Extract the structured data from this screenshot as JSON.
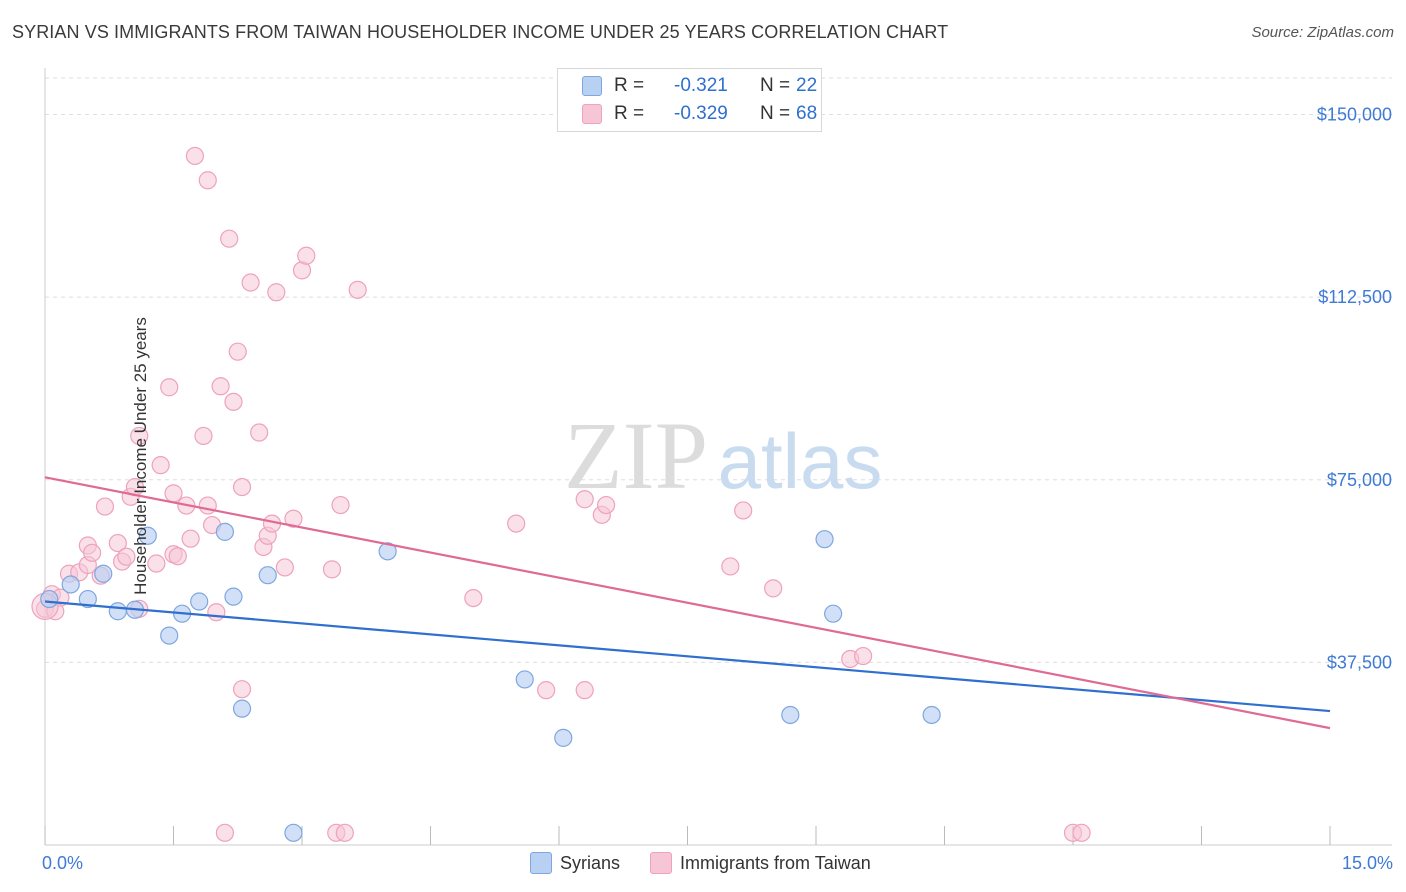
{
  "title": "SYRIAN VS IMMIGRANTS FROM TAIWAN HOUSEHOLDER INCOME UNDER 25 YEARS CORRELATION CHART",
  "source": "Source: ZipAtlas.com",
  "watermark": {
    "zip": "ZIP",
    "atlas": "atlas"
  },
  "stats": {
    "r_label": "R =",
    "n_label": "N =",
    "syrians": {
      "r": "-0.321",
      "n": "22"
    },
    "taiwan": {
      "r": "-0.329",
      "n": "68"
    }
  },
  "legend": {
    "syrians": "Syrians",
    "taiwan": "Immigrants from Taiwan"
  },
  "colors": {
    "blue_fill": "#b8d0f2",
    "blue_stroke": "#7ea7e0",
    "blue_line": "#2f6fce",
    "pink_fill": "#f6c6d6",
    "pink_stroke": "#eea2bc",
    "pink_line": "#e06a96",
    "tick_text": "#3e7ad6"
  },
  "chart_data": {
    "type": "scatter",
    "xlabel": "",
    "ylabel": "Householder Income Under 25 years",
    "xlim": [
      0,
      15
    ],
    "ylim": [
      0,
      157500
    ],
    "x_tick_labels": [
      "0.0%",
      "15.0%"
    ],
    "y_ticks": [
      37500,
      75000,
      112500,
      150000
    ],
    "y_tick_labels": [
      "$37,500",
      "$75,000",
      "$112,500",
      "$150,000"
    ],
    "series": [
      {
        "name": "Syrians",
        "r": -0.321,
        "n": 22,
        "trend": {
          "x": [
            0,
            15
          ],
          "y": [
            50000,
            27500
          ]
        },
        "points": [
          {
            "x": 0.05,
            "y": 50500
          },
          {
            "x": 0.3,
            "y": 53500
          },
          {
            "x": 0.5,
            "y": 50500
          },
          {
            "x": 0.68,
            "y": 55700
          },
          {
            "x": 0.85,
            "y": 48000
          },
          {
            "x": 1.05,
            "y": 48300
          },
          {
            "x": 1.2,
            "y": 63500
          },
          {
            "x": 1.45,
            "y": 43000
          },
          {
            "x": 1.6,
            "y": 47500
          },
          {
            "x": 1.8,
            "y": 50000
          },
          {
            "x": 2.1,
            "y": 64300
          },
          {
            "x": 2.2,
            "y": 51000
          },
          {
            "x": 2.3,
            "y": 28000
          },
          {
            "x": 2.6,
            "y": 55400
          },
          {
            "x": 2.9,
            "y": 2500
          },
          {
            "x": 4.0,
            "y": 60300
          },
          {
            "x": 5.6,
            "y": 34000
          },
          {
            "x": 6.05,
            "y": 22000
          },
          {
            "x": 8.7,
            "y": 26700
          },
          {
            "x": 9.1,
            "y": 62800
          },
          {
            "x": 9.2,
            "y": 47500
          },
          {
            "x": 10.35,
            "y": 26700
          }
        ]
      },
      {
        "name": "Immigrants from Taiwan",
        "r": -0.329,
        "n": 68,
        "trend": {
          "x": [
            0,
            15
          ],
          "y": [
            75500,
            24000
          ]
        },
        "points": [
          {
            "x": 0.0,
            "y": 48500
          },
          {
            "x": 0.08,
            "y": 51500
          },
          {
            "x": 0.18,
            "y": 50800
          },
          {
            "x": 0.28,
            "y": 55700
          },
          {
            "x": 0.4,
            "y": 56000
          },
          {
            "x": 0.5,
            "y": 57500
          },
          {
            "x": 0.5,
            "y": 61500
          },
          {
            "x": 0.55,
            "y": 60000
          },
          {
            "x": 0.65,
            "y": 55300
          },
          {
            "x": 0.7,
            "y": 69500
          },
          {
            "x": 0.85,
            "y": 62000
          },
          {
            "x": 0.9,
            "y": 58200
          },
          {
            "x": 0.95,
            "y": 59200
          },
          {
            "x": 1.0,
            "y": 71500
          },
          {
            "x": 1.05,
            "y": 73500
          },
          {
            "x": 1.1,
            "y": 84000
          },
          {
            "x": 1.1,
            "y": 48500
          },
          {
            "x": 1.3,
            "y": 57800
          },
          {
            "x": 1.35,
            "y": 78000
          },
          {
            "x": 1.45,
            "y": 94000
          },
          {
            "x": 1.5,
            "y": 72200
          },
          {
            "x": 1.5,
            "y": 59700
          },
          {
            "x": 1.55,
            "y": 59300
          },
          {
            "x": 1.65,
            "y": 69700
          },
          {
            "x": 1.7,
            "y": 62900
          },
          {
            "x": 1.75,
            "y": 141500
          },
          {
            "x": 1.85,
            "y": 84000
          },
          {
            "x": 1.9,
            "y": 136500
          },
          {
            "x": 1.9,
            "y": 69700
          },
          {
            "x": 1.95,
            "y": 65700
          },
          {
            "x": 2.0,
            "y": 47800
          },
          {
            "x": 2.05,
            "y": 94200
          },
          {
            "x": 2.1,
            "y": 2500
          },
          {
            "x": 2.15,
            "y": 124500
          },
          {
            "x": 2.2,
            "y": 91000
          },
          {
            "x": 2.25,
            "y": 101300
          },
          {
            "x": 2.3,
            "y": 73500
          },
          {
            "x": 2.3,
            "y": 32000
          },
          {
            "x": 2.4,
            "y": 115500
          },
          {
            "x": 2.5,
            "y": 84700
          },
          {
            "x": 2.55,
            "y": 61200
          },
          {
            "x": 2.6,
            "y": 63500
          },
          {
            "x": 2.65,
            "y": 66000
          },
          {
            "x": 2.7,
            "y": 113500
          },
          {
            "x": 2.8,
            "y": 57000
          },
          {
            "x": 2.9,
            "y": 67000
          },
          {
            "x": 3.0,
            "y": 118000
          },
          {
            "x": 3.05,
            "y": 121000
          },
          {
            "x": 3.35,
            "y": 56600
          },
          {
            "x": 3.4,
            "y": 2500
          },
          {
            "x": 3.45,
            "y": 69800
          },
          {
            "x": 3.5,
            "y": 2500
          },
          {
            "x": 3.65,
            "y": 114000
          },
          {
            "x": 5.0,
            "y": 50700
          },
          {
            "x": 5.5,
            "y": 66000
          },
          {
            "x": 5.85,
            "y": 31800
          },
          {
            "x": 6.3,
            "y": 71000
          },
          {
            "x": 6.3,
            "y": 31800
          },
          {
            "x": 6.5,
            "y": 67800
          },
          {
            "x": 6.55,
            "y": 69800
          },
          {
            "x": 8.0,
            "y": 57200
          },
          {
            "x": 8.15,
            "y": 68700
          },
          {
            "x": 8.5,
            "y": 52700
          },
          {
            "x": 9.4,
            "y": 38200
          },
          {
            "x": 9.55,
            "y": 38800
          },
          {
            "x": 12.0,
            "y": 2500
          },
          {
            "x": 12.1,
            "y": 2500
          },
          {
            "x": 0.12,
            "y": 48000
          }
        ]
      }
    ]
  }
}
